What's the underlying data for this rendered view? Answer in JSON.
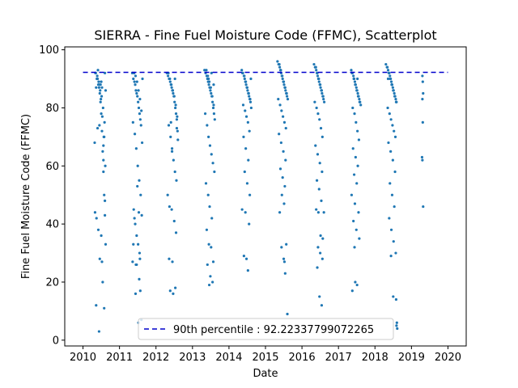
{
  "chart_data": {
    "type": "scatter",
    "title": "SIERRA - Fine Fuel Moisture Code (FFMC), Scatterplot",
    "xlabel": "Date",
    "ylabel": "Fine Fuel Moisture Code (FFMC)",
    "xlim": [
      2009.5,
      2020.5
    ],
    "ylim": [
      -2,
      101
    ],
    "xticks": [
      "2010",
      "2011",
      "2012",
      "2013",
      "2014",
      "2015",
      "2016",
      "2017",
      "2018",
      "2019",
      "2020"
    ],
    "yticks": [
      "0",
      "20",
      "40",
      "60",
      "80",
      "100"
    ],
    "grid": false,
    "legend_position": "bottom-center",
    "series": [
      {
        "type": "scatter",
        "color": "#1f77b4",
        "x": [
          2010.32,
          2010.36,
          2010.39,
          2010.41,
          2010.43,
          2010.45,
          2010.46,
          2010.48,
          2010.5,
          2010.52,
          2010.54,
          2010.56,
          2010.58,
          2010.6,
          2010.62,
          2010.34,
          2010.38,
          2010.42,
          2010.47,
          2010.51,
          2010.55,
          2010.59,
          2010.35,
          2010.4,
          2010.44,
          2010.49,
          2010.53,
          2010.57,
          2010.61,
          2010.33,
          2010.37,
          2010.46,
          2010.52,
          2010.56,
          2010.6,
          2010.42,
          2010.5,
          2010.58,
          2010.36,
          2010.44,
          2010.54,
          2010.48,
          2010.62,
          2010.4,
          2010.56,
          2010.45,
          2010.6,
          2010.5,
          2010.52,
          2010.58,
          2011.35,
          2011.38,
          2011.41,
          2011.43,
          2011.45,
          2011.47,
          2011.49,
          2011.51,
          2011.53,
          2011.55,
          2011.57,
          2011.59,
          2011.62,
          2011.4,
          2011.44,
          2011.48,
          2011.52,
          2011.56,
          2011.6,
          2011.37,
          2011.42,
          2011.46,
          2011.5,
          2011.54,
          2011.58,
          2011.39,
          2011.43,
          2011.47,
          2011.51,
          2011.55,
          2011.36,
          2011.45,
          2011.53,
          2011.61,
          2011.41,
          2011.49,
          2011.57,
          2011.44,
          2011.52,
          2011.6,
          2011.38,
          2011.56,
          2011.47,
          2011.54,
          2011.63,
          2012.3,
          2012.33,
          2012.36,
          2012.39,
          2012.41,
          2012.43,
          2012.45,
          2012.47,
          2012.49,
          2012.51,
          2012.53,
          2012.55,
          2012.57,
          2012.59,
          2012.34,
          2012.38,
          2012.42,
          2012.46,
          2012.5,
          2012.54,
          2012.58,
          2012.35,
          2012.4,
          2012.44,
          2012.48,
          2012.52,
          2012.56,
          2012.32,
          2012.37,
          2012.43,
          2012.5,
          2012.55,
          2012.36,
          2012.45,
          2012.53,
          2012.39,
          2012.47,
          2012.41,
          2012.57,
          2012.6,
          2012.44,
          2012.52,
          2013.33,
          2013.36,
          2013.39,
          2013.41,
          2013.43,
          2013.45,
          2013.47,
          2013.49,
          2013.51,
          2013.53,
          2013.55,
          2013.57,
          2013.59,
          2013.61,
          2013.38,
          2013.42,
          2013.46,
          2013.5,
          2013.54,
          2013.58,
          2013.35,
          2013.4,
          2013.44,
          2013.48,
          2013.52,
          2013.56,
          2013.6,
          2013.37,
          2013.43,
          2013.47,
          2013.53,
          2013.39,
          2013.45,
          2013.51,
          2013.57,
          2013.41,
          2013.49,
          2013.55,
          2013.46,
          2013.52,
          2013.44,
          2013.58,
          2014.35,
          2014.38,
          2014.41,
          2014.43,
          2014.45,
          2014.47,
          2014.49,
          2014.51,
          2014.53,
          2014.55,
          2014.57,
          2014.59,
          2014.61,
          2014.37,
          2014.42,
          2014.46,
          2014.5,
          2014.54,
          2014.58,
          2014.39,
          2014.44,
          2014.48,
          2014.52,
          2014.56,
          2014.4,
          2014.46,
          2014.53,
          2014.43,
          2014.5,
          2014.57,
          2014.36,
          2014.45,
          2014.55,
          2014.41,
          2014.48,
          2014.52,
          2014.6,
          2015.33,
          2015.36,
          2015.39,
          2015.41,
          2015.43,
          2015.45,
          2015.47,
          2015.49,
          2015.51,
          2015.53,
          2015.55,
          2015.57,
          2015.59,
          2015.61,
          2015.38,
          2015.42,
          2015.46,
          2015.5,
          2015.54,
          2015.58,
          2015.35,
          2015.4,
          2015.44,
          2015.48,
          2015.52,
          2015.56,
          2015.37,
          2015.43,
          2015.49,
          2015.55,
          2015.41,
          2015.47,
          2015.53,
          2015.45,
          2015.51,
          2015.39,
          2015.57,
          2015.44,
          2015.5,
          2015.52,
          2015.54,
          2015.6,
          2016.33,
          2016.36,
          2016.39,
          2016.41,
          2016.43,
          2016.45,
          2016.47,
          2016.49,
          2016.51,
          2016.53,
          2016.55,
          2016.57,
          2016.59,
          2016.61,
          2016.38,
          2016.42,
          2016.46,
          2016.5,
          2016.54,
          2016.58,
          2016.35,
          2016.4,
          2016.44,
          2016.48,
          2016.52,
          2016.56,
          2016.37,
          2016.43,
          2016.49,
          2016.55,
          2016.41,
          2016.47,
          2016.53,
          2016.39,
          2016.45,
          2016.51,
          2016.57,
          2016.44,
          2016.5,
          2016.56,
          2016.42,
          2016.48,
          2016.54,
          2016.6,
          2017.35,
          2017.38,
          2017.41,
          2017.43,
          2017.45,
          2017.47,
          2017.49,
          2017.51,
          2017.53,
          2017.55,
          2017.57,
          2017.59,
          2017.61,
          2017.37,
          2017.42,
          2017.46,
          2017.5,
          2017.54,
          2017.58,
          2017.39,
          2017.44,
          2017.48,
          2017.52,
          2017.56,
          2017.4,
          2017.47,
          2017.53,
          2017.43,
          2017.5,
          2017.36,
          2017.45,
          2017.55,
          2017.41,
          2017.49,
          2017.57,
          2017.44,
          2017.46,
          2017.51,
          2017.38,
          2017.52,
          2018.3,
          2018.33,
          2018.36,
          2018.39,
          2018.41,
          2018.43,
          2018.45,
          2018.47,
          2018.49,
          2018.51,
          2018.53,
          2018.55,
          2018.57,
          2018.59,
          2018.34,
          2018.38,
          2018.42,
          2018.46,
          2018.5,
          2018.54,
          2018.58,
          2018.35,
          2018.4,
          2018.44,
          2018.48,
          2018.52,
          2018.56,
          2018.37,
          2018.43,
          2018.49,
          2018.55,
          2018.41,
          2018.47,
          2018.53,
          2018.39,
          2018.45,
          2018.51,
          2018.57,
          2018.44,
          2018.5,
          2018.58,
          2018.6,
          2018.59,
          2018.61,
          2018.36,
          2018.46,
          2019.3,
          2019.31,
          2019.32,
          2019.3,
          2019.31,
          2019.29,
          2019.3,
          2019.32
        ],
        "y": [
          68,
          87,
          91,
          93,
          89,
          88,
          85,
          82,
          78,
          72,
          65,
          58,
          50,
          43,
          33,
          92,
          90,
          88,
          86,
          84,
          80,
          75,
          92,
          90,
          87,
          83,
          77,
          70,
          60,
          44,
          42,
          28,
          27,
          62,
          48,
          38,
          36,
          11,
          12,
          3,
          20,
          88,
          86,
          73,
          67,
          74,
          92,
          89,
          87,
          70,
          92,
          90,
          89,
          88,
          86,
          85,
          84,
          82,
          80,
          78,
          76,
          74,
          68,
          92,
          91,
          89,
          86,
          83,
          79,
          75,
          71,
          66,
          60,
          55,
          50,
          45,
          40,
          36,
          33,
          30,
          27,
          26,
          44,
          43,
          42,
          53,
          17,
          16,
          6,
          7,
          33,
          28,
          26,
          21,
          90,
          92,
          91,
          90,
          89,
          88,
          87,
          86,
          85,
          84,
          82,
          80,
          78,
          76,
          72,
          92,
          90,
          88,
          86,
          84,
          81,
          77,
          74,
          70,
          66,
          62,
          58,
          55,
          50,
          46,
          45,
          41,
          37,
          28,
          27,
          18,
          17,
          16,
          75,
          73,
          69,
          65,
          90,
          93,
          92,
          91,
          90,
          89,
          88,
          87,
          86,
          85,
          84,
          82,
          80,
          78,
          76,
          93,
          91,
          89,
          87,
          84,
          81,
          78,
          74,
          70,
          67,
          64,
          61,
          58,
          54,
          50,
          46,
          42,
          38,
          33,
          32,
          27,
          26,
          22,
          20,
          19,
          92,
          90,
          88,
          93,
          92,
          91,
          90,
          89,
          88,
          87,
          86,
          85,
          84,
          83,
          82,
          80,
          92,
          91,
          89,
          87,
          85,
          83,
          81,
          79,
          77,
          75,
          72,
          70,
          66,
          62,
          58,
          54,
          50,
          45,
          44,
          40,
          29,
          28,
          24,
          90,
          96,
          95,
          94,
          93,
          92,
          91,
          90,
          89,
          88,
          87,
          86,
          85,
          84,
          83,
          95,
          93,
          91,
          89,
          87,
          85,
          83,
          81,
          79,
          77,
          75,
          73,
          71,
          68,
          65,
          62,
          59,
          56,
          53,
          50,
          47,
          44,
          33,
          32,
          28,
          27,
          23,
          9,
          95,
          94,
          93,
          92,
          91,
          90,
          89,
          88,
          87,
          86,
          85,
          84,
          83,
          82,
          94,
          92,
          90,
          88,
          86,
          84,
          82,
          80,
          78,
          76,
          73,
          70,
          67,
          64,
          61,
          58,
          55,
          52,
          48,
          45,
          44,
          36,
          35,
          32,
          30,
          28,
          25,
          15,
          12,
          44,
          93,
          92,
          91,
          90,
          89,
          88,
          87,
          86,
          85,
          84,
          83,
          82,
          81,
          92,
          90,
          88,
          86,
          84,
          82,
          80,
          78,
          75,
          72,
          69,
          66,
          63,
          60,
          57,
          54,
          50,
          47,
          44,
          41,
          38,
          35,
          32,
          20,
          19,
          17,
          90,
          95,
          94,
          93,
          92,
          91,
          90,
          89,
          88,
          87,
          86,
          85,
          84,
          83,
          82,
          94,
          92,
          90,
          88,
          86,
          84,
          82,
          80,
          78,
          76,
          74,
          72,
          70,
          68,
          65,
          62,
          58,
          54,
          50,
          46,
          42,
          38,
          34,
          30,
          29,
          15,
          14,
          6,
          5,
          4,
          90,
          88,
          91,
          89,
          85,
          83,
          75,
          63,
          62,
          46
        ]
      },
      {
        "type": "hline",
        "name": "90th percentile : 92.22337799072265",
        "value": 92.22337799072265,
        "color": "#0000cc",
        "linestyle": "dashed",
        "x_range": [
          2010,
          2020
        ]
      }
    ]
  }
}
